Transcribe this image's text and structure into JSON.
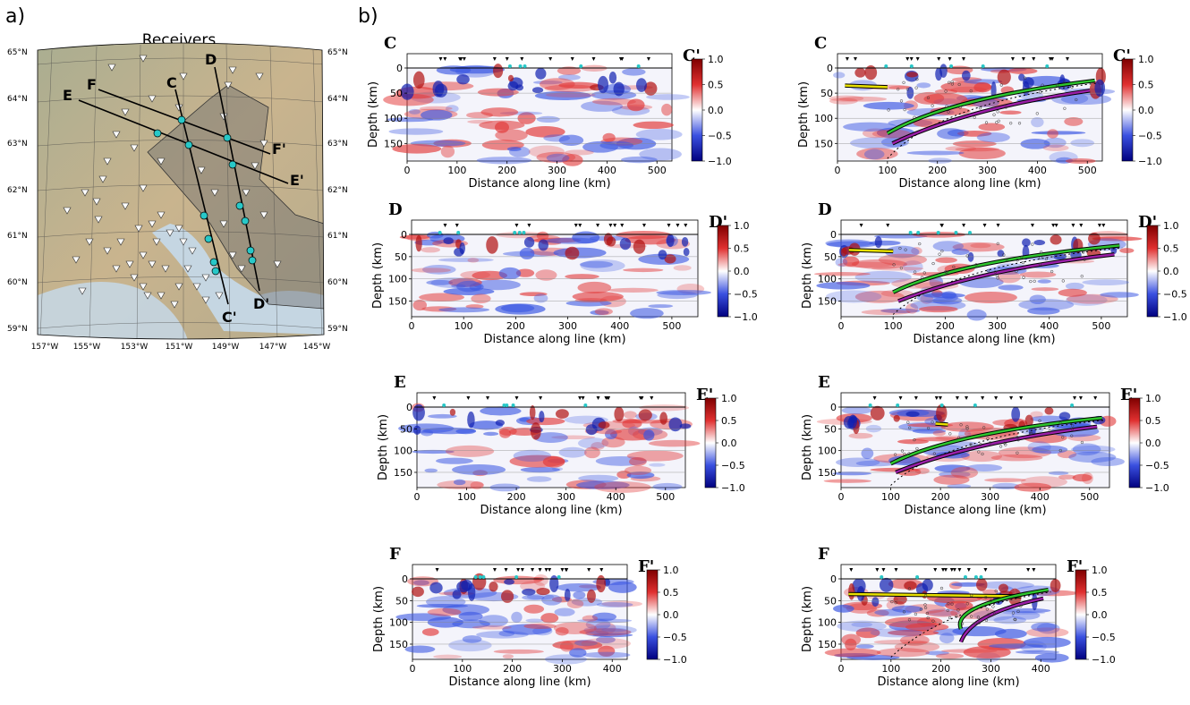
{
  "panel_labels": {
    "a": "a)",
    "b": "b)"
  },
  "map": {
    "title": "Receivers",
    "lat_labels": [
      "65°N",
      "64°N",
      "63°N",
      "62°N",
      "61°N",
      "60°N",
      "59°N"
    ],
    "lon_labels": [
      "157°W",
      "155°W",
      "153°W",
      "151°W",
      "149°W",
      "147°W",
      "145°W"
    ],
    "profile_labels": [
      "C",
      "C'",
      "D",
      "D'",
      "E",
      "E'",
      "F",
      "F'"
    ],
    "colors": {
      "land": "#b7b397",
      "water": "#c5d6e2",
      "shade": "#6e6e6e",
      "line": "#000000",
      "cyan": "#28c8c8"
    }
  },
  "profiles": {
    "C": {
      "start": "C",
      "end": "C'",
      "xticks": [
        "0",
        "100",
        "200",
        "300",
        "400",
        "500"
      ]
    },
    "D": {
      "start": "D",
      "end": "D'",
      "xticks": [
        "0",
        "100",
        "200",
        "300",
        "400",
        "500"
      ]
    },
    "E": {
      "start": "E",
      "end": "E'",
      "xticks": [
        "0",
        "100",
        "200",
        "300",
        "400",
        "500"
      ]
    },
    "F": {
      "start": "F",
      "end": "F'",
      "xticks": [
        "0",
        "100",
        "200",
        "300",
        "400"
      ]
    }
  },
  "axes": {
    "ylabel": "Depth (km)",
    "xlabel": "Distance along line (km)",
    "yticks": [
      "0",
      "50",
      "100",
      "150"
    ]
  },
  "colorbar": {
    "ticks": [
      "1.0",
      "0.5",
      "0.0",
      "−0.5",
      "−1.0"
    ],
    "colors": {
      "max": "#7f0000",
      "mid": "#ffffff",
      "min": "#00007f"
    }
  },
  "interpretation_colors": {
    "yellow": "#e8e000",
    "green": "#2ec52e",
    "purple": "#9b1fa8"
  }
}
